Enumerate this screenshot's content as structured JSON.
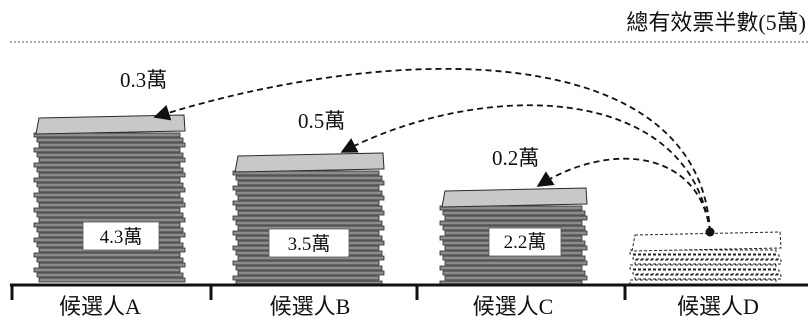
{
  "threshold": {
    "label": "總有效票半數(5萬)",
    "value": 5
  },
  "candidates": [
    {
      "label": "候選人A",
      "votes_label": "4.3萬",
      "votes": 4.3,
      "transfer_label": "0.3萬",
      "transfer": 0.3
    },
    {
      "label": "候選人B",
      "votes_label": "3.5萬",
      "votes": 3.5,
      "transfer_label": "0.5萬",
      "transfer": 0.5
    },
    {
      "label": "候選人C",
      "votes_label": "2.2萬",
      "votes": 2.2,
      "transfer_label": "0.2萬",
      "transfer": 0.2
    },
    {
      "label": "候選人D",
      "votes": 1.0
    }
  ],
  "colors": {
    "stack_fill": "#8c8c8c",
    "stack_line": "#2a2a2a",
    "top_sheet": "#c8c8c8",
    "arrow": "#111111",
    "threshold_line": "#777777"
  }
}
